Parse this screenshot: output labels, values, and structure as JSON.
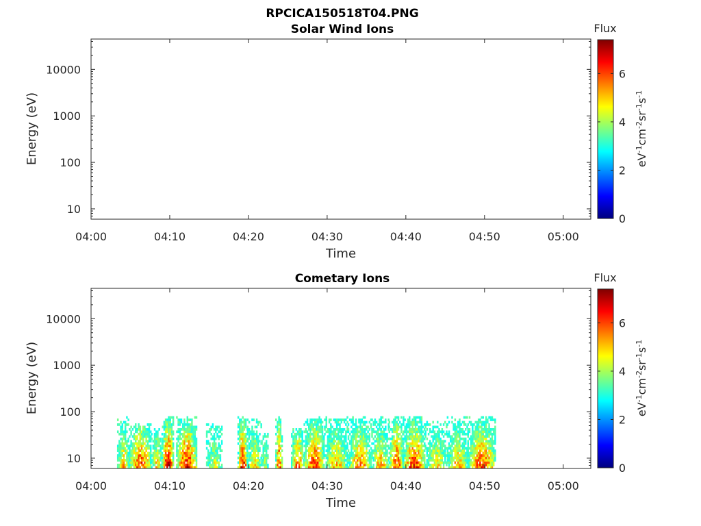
{
  "figure": {
    "main_title": "RPCICA150518T04.PNG"
  },
  "colormap": {
    "name": "jet",
    "stops": [
      "#00007f",
      "#0000ff",
      "#007fff",
      "#00ffff",
      "#7fff7f",
      "#ffff00",
      "#ff7f00",
      "#ff0000",
      "#7f0000"
    ]
  },
  "chart_data": [
    {
      "type": "heatmap",
      "title": "Solar Wind Ions",
      "xlabel": "Time",
      "ylabel": "Energy (eV)",
      "x_ticks": [
        "04:00",
        "04:10",
        "04:20",
        "04:30",
        "04:40",
        "04:50",
        "05:00"
      ],
      "x_range_minutes": [
        0,
        63.5
      ],
      "y_scale": "log",
      "y_ticks": [
        10,
        100,
        1000,
        10000
      ],
      "y_tick_labels": [
        "10",
        "100",
        "1000",
        "10000"
      ],
      "ylim": [
        6,
        45000
      ],
      "colorbar": {
        "title": "Flux",
        "label": "eV-1cm-2sr-1s-1",
        "ticks": [
          0,
          2,
          4,
          6
        ],
        "range": [
          0,
          7.4
        ]
      },
      "data": []
    },
    {
      "type": "heatmap",
      "title": "Cometary Ions",
      "xlabel": "Time",
      "ylabel": "Energy (eV)",
      "x_ticks": [
        "04:00",
        "04:10",
        "04:20",
        "04:30",
        "04:40",
        "04:50",
        "05:00"
      ],
      "x_range_minutes": [
        0,
        63.5
      ],
      "y_scale": "log",
      "y_ticks": [
        10,
        100,
        1000,
        10000
      ],
      "y_tick_labels": [
        "10",
        "100",
        "1000",
        "10000"
      ],
      "ylim": [
        6,
        45000
      ],
      "colorbar": {
        "title": "Flux",
        "label": "eV-1cm-2sr-1s-1",
        "ticks": [
          0,
          2,
          4,
          6
        ],
        "range": [
          0,
          7.4
        ]
      },
      "data_energy_range_eV": [
        6,
        80
      ],
      "bursts": [
        {
          "start_min": 3.3,
          "end_min": 4.8,
          "max_energy_eV": 80,
          "peak_flux": 5.3
        },
        {
          "start_min": 4.8,
          "end_min": 7.6,
          "max_energy_eV": 55,
          "peak_flux": 6.3
        },
        {
          "start_min": 7.6,
          "end_min": 9.0,
          "max_energy_eV": 45,
          "peak_flux": 5.2
        },
        {
          "start_min": 9.0,
          "end_min": 10.4,
          "max_energy_eV": 80,
          "peak_flux": 7.2
        },
        {
          "start_min": 10.8,
          "end_min": 13.4,
          "max_energy_eV": 80,
          "peak_flux": 6.8
        },
        {
          "start_min": 14.6,
          "end_min": 16.6,
          "max_energy_eV": 60,
          "peak_flux": 4.6
        },
        {
          "start_min": 18.6,
          "end_min": 19.8,
          "max_energy_eV": 80,
          "peak_flux": 7.0
        },
        {
          "start_min": 19.8,
          "end_min": 21.6,
          "max_energy_eV": 75,
          "peak_flux": 5.2
        },
        {
          "start_min": 21.6,
          "end_min": 22.4,
          "max_energy_eV": 40,
          "peak_flux": 4.3
        },
        {
          "start_min": 23.4,
          "end_min": 24.2,
          "max_energy_eV": 80,
          "peak_flux": 6.6
        },
        {
          "start_min": 25.4,
          "end_min": 27.0,
          "max_energy_eV": 45,
          "peak_flux": 6.0
        },
        {
          "start_min": 27.0,
          "end_min": 29.6,
          "max_energy_eV": 80,
          "peak_flux": 6.4
        },
        {
          "start_min": 29.6,
          "end_min": 32.6,
          "max_energy_eV": 80,
          "peak_flux": 5.4
        },
        {
          "start_min": 32.6,
          "end_min": 35.6,
          "max_energy_eV": 80,
          "peak_flux": 5.9
        },
        {
          "start_min": 35.6,
          "end_min": 37.8,
          "max_energy_eV": 80,
          "peak_flux": 5.5
        },
        {
          "start_min": 37.8,
          "end_min": 39.6,
          "max_energy_eV": 80,
          "peak_flux": 6.6
        },
        {
          "start_min": 39.6,
          "end_min": 42.4,
          "max_energy_eV": 80,
          "peak_flux": 6.5
        },
        {
          "start_min": 42.4,
          "end_min": 45.2,
          "max_energy_eV": 60,
          "peak_flux": 5.1
        },
        {
          "start_min": 45.2,
          "end_min": 47.8,
          "max_energy_eV": 80,
          "peak_flux": 5.4
        },
        {
          "start_min": 47.8,
          "end_min": 51.4,
          "max_energy_eV": 80,
          "peak_flux": 6.3
        }
      ]
    }
  ]
}
